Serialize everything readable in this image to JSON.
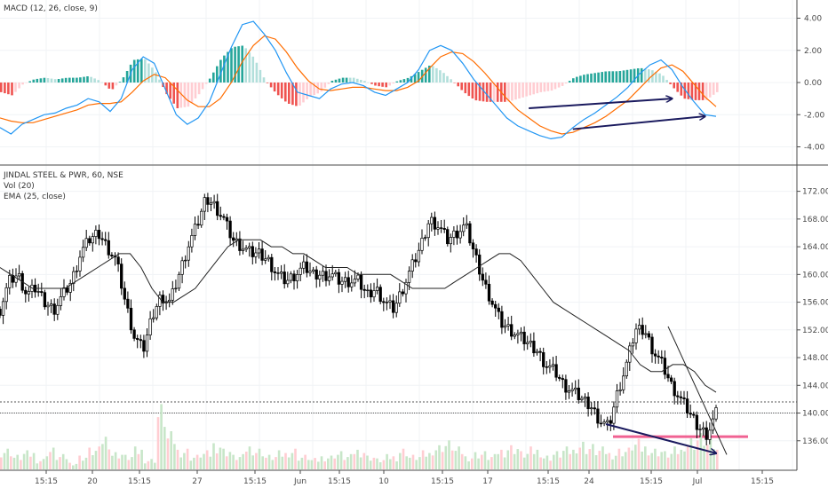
{
  "macd_panel": {
    "title": "MACD (12, 26, close, 9)",
    "y_ticks": [
      "4.00",
      "2.00",
      "0.00",
      "-2.00",
      "-4.00"
    ]
  },
  "price_panel": {
    "title": "JINDAL STEEL & PWR, 60, NSE",
    "volume_label": "Vol (20)",
    "ema_label": "EMA (25, close)",
    "y_ticks": [
      "172.00",
      "168.00",
      "164.00",
      "160.00",
      "156.00",
      "152.00",
      "148.00",
      "144.00",
      "140.00",
      "136.00"
    ]
  },
  "x_axis": {
    "ticks": [
      "15:15",
      "20",
      "15:15",
      "27",
      "15:15",
      "Jun",
      "15:15",
      "10",
      "15:15",
      "17",
      "15:15",
      "24",
      "15:15",
      "Jul",
      "15:15"
    ]
  },
  "colors": {
    "up_candle": "#ffffff",
    "down_candle": "#000000",
    "macd_line": "#2196f3",
    "signal_line": "#ff6d00",
    "hist_pos_strong": "#26a69a",
    "hist_pos_weak": "#b2dfdb",
    "hist_neg_strong": "#ef5350",
    "hist_neg_weak": "#ffcdd2",
    "volume_up": "#c8e6c9",
    "volume_down": "#ffcdd2",
    "support_line": "#f06292",
    "annotation_arrow": "#1a1a5e"
  },
  "chart_data": [
    {
      "type": "line",
      "name": "MACD panel",
      "ylim": [
        -4.8,
        4.8
      ],
      "y_ticks": [
        4,
        2,
        0,
        -2,
        -4
      ],
      "macd_series": [
        -2.8,
        -3.2,
        -2.6,
        -2.3,
        -2.0,
        -1.9,
        -1.6,
        -1.4,
        -1.0,
        -1.2,
        -1.8,
        -1.0,
        0.8,
        1.6,
        1.2,
        -0.4,
        -2.0,
        -2.6,
        -2.2,
        -1.2,
        0.5,
        2.2,
        3.6,
        3.8,
        3.0,
        2.0,
        0.6,
        -0.6,
        -0.8,
        -1.0,
        -0.4,
        -0.1,
        0.0,
        -0.2,
        -0.6,
        -0.8,
        -0.4,
        0.0,
        0.8,
        2.0,
        2.3,
        2.0,
        1.2,
        0.2,
        -0.6,
        -1.4,
        -2.2,
        -2.7,
        -3.0,
        -3.3,
        -3.5,
        -3.4,
        -2.8,
        -2.3,
        -1.9,
        -1.4,
        -0.9,
        -0.3,
        0.5,
        1.1,
        1.4,
        0.8,
        -0.3,
        -1.2,
        -2.0,
        -2.1
      ],
      "signal_series": [
        -2.2,
        -2.4,
        -2.5,
        -2.5,
        -2.3,
        -2.1,
        -1.9,
        -1.7,
        -1.4,
        -1.3,
        -1.3,
        -1.2,
        -0.6,
        0.1,
        0.5,
        0.3,
        -0.4,
        -1.1,
        -1.5,
        -1.5,
        -1.0,
        0.0,
        1.3,
        2.3,
        2.9,
        2.7,
        1.9,
        0.9,
        0.1,
        -0.4,
        -0.5,
        -0.4,
        -0.3,
        -0.3,
        -0.4,
        -0.5,
        -0.5,
        -0.3,
        0.1,
        0.9,
        1.6,
        1.9,
        1.8,
        1.3,
        0.6,
        -0.2,
        -1.0,
        -1.7,
        -2.2,
        -2.7,
        -3.0,
        -3.2,
        -3.1,
        -2.8,
        -2.5,
        -2.1,
        -1.6,
        -1.1,
        -0.4,
        0.3,
        0.9,
        1.1,
        0.7,
        -0.1,
        -0.9,
        -1.5
      ],
      "annotations": [
        {
          "type": "arrow",
          "from": [
            48,
            -1.6
          ],
          "to": [
            61,
            -1.0
          ]
        },
        {
          "type": "arrow",
          "from": [
            52,
            -2.9
          ],
          "to": [
            64,
            -2.1
          ]
        }
      ]
    },
    {
      "type": "candlestick",
      "name": "JINDAL STEEL & PWR, 60, NSE",
      "ylim": [
        132,
        174
      ],
      "y_ticks": [
        172,
        168,
        164,
        160,
        156,
        152,
        148,
        144,
        140,
        136
      ],
      "close_path": [
        155,
        159,
        160,
        157,
        158,
        156,
        155,
        157,
        159,
        163,
        165,
        166,
        164,
        162,
        156,
        151,
        149,
        154,
        157,
        156,
        160,
        164,
        167,
        171,
        170,
        168,
        165,
        164,
        163,
        163,
        162,
        160,
        159,
        160,
        161,
        160,
        160,
        160,
        159,
        159,
        159,
        157,
        158,
        156,
        155,
        158,
        161,
        164,
        168,
        167,
        165,
        166,
        167,
        163,
        159,
        156,
        153,
        152,
        151,
        150,
        149,
        147,
        146,
        144,
        143,
        142,
        141,
        139,
        138,
        143,
        147,
        152,
        152,
        149,
        147,
        144,
        142,
        140,
        138,
        137,
        140
      ],
      "ema_path": [
        161,
        160,
        159,
        158,
        158,
        158,
        158,
        159,
        160,
        161,
        162,
        163,
        163,
        161,
        158,
        156,
        156,
        157,
        158,
        160,
        162,
        164,
        165,
        165,
        165,
        164,
        164,
        163,
        163,
        162,
        161,
        161,
        161,
        160,
        160,
        160,
        160,
        159,
        158,
        158,
        158,
        158,
        159,
        160,
        161,
        162,
        163,
        163,
        162,
        160,
        158,
        156,
        155,
        154,
        153,
        152,
        151,
        150,
        149,
        147,
        146,
        146,
        147,
        147,
        146,
        144,
        143
      ],
      "reference_lines": [
        141.6,
        140.0
      ],
      "support_level": 136.6,
      "annotations": [
        {
          "type": "arrow",
          "from": [
            55,
            138.4
          ],
          "to": [
            65,
            134.2
          ]
        }
      ]
    },
    {
      "type": "bar",
      "name": "Volume",
      "values_relative": [
        0.3,
        0.2,
        0.25,
        0.15,
        0.3,
        0.2,
        0.1,
        0.2,
        0.3,
        0.5,
        0.25,
        0.2,
        0.3,
        0.15,
        0.9,
        0.5,
        0.3,
        0.2,
        0.25,
        0.4,
        0.3,
        0.2,
        0.35,
        0.3,
        0.2,
        0.25,
        0.3,
        0.2,
        0.15,
        0.2,
        0.25,
        0.2,
        0.3,
        0.2,
        0.15,
        0.2,
        0.3,
        0.2,
        0.25,
        0.35,
        0.4,
        0.3,
        0.2,
        0.25,
        0.2,
        0.3,
        0.35,
        0.25,
        0.3,
        0.2,
        0.25,
        0.3,
        0.4,
        0.35,
        0.3,
        0.25,
        0.3,
        0.4,
        0.35,
        0.3,
        0.25,
        0.3,
        0.45,
        0.5,
        0.4,
        0.3
      ]
    }
  ]
}
